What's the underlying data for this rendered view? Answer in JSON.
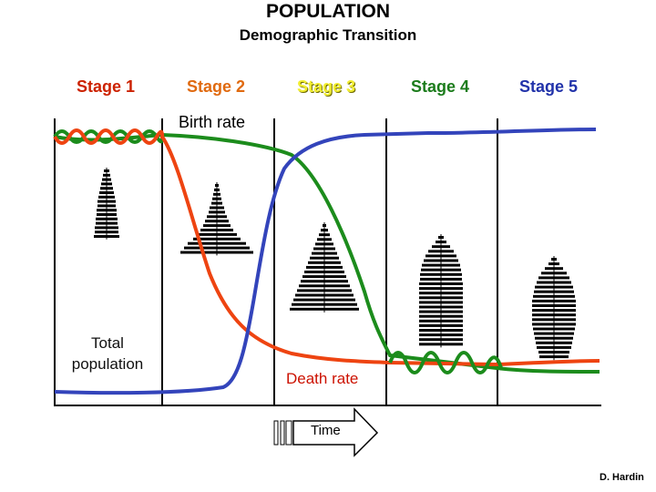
{
  "title": "POPULATION",
  "subtitle": "Demographic Transition",
  "stages": [
    "Stage 1",
    "Stage 2",
    "Stage 3",
    "Stage 4",
    "Stage 5"
  ],
  "labels": {
    "birth_rate": "Birth rate",
    "death_rate": "Death rate",
    "total_population": "Total population",
    "time": "Time"
  },
  "credit": "D. Hardin",
  "colors": {
    "birth_rate": "#1c8c1c",
    "death_rate": "#ee4411",
    "total_population": "#3344bb",
    "stage_1": "#cc2200",
    "stage_2": "#e06a10",
    "stage_3": "#f2ee30",
    "stage_4": "#1c7c1c",
    "stage_5": "#2233aa"
  },
  "pyramid_shapes": [
    "narrow-tall",
    "wide-base",
    "broad-pyramid",
    "column",
    "tapered-base"
  ]
}
